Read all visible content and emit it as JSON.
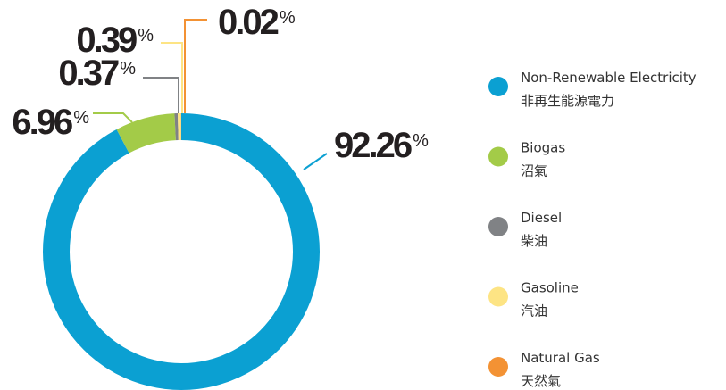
{
  "chart_data": {
    "type": "donut",
    "categories": [
      "Non-Renewable Electricity",
      "Biogas",
      "Diesel",
      "Gasoline",
      "Natural Gas"
    ],
    "categories_zh": [
      "非再生能源電力",
      "沼氣",
      "柴油",
      "汽油",
      "天然氣"
    ],
    "values": [
      92.26,
      6.96,
      0.37,
      0.39,
      0.02
    ],
    "unit": "%",
    "colors": [
      "#0ba0d2",
      "#a3cb48",
      "#808285",
      "#fde484",
      "#f39234"
    ]
  }
}
